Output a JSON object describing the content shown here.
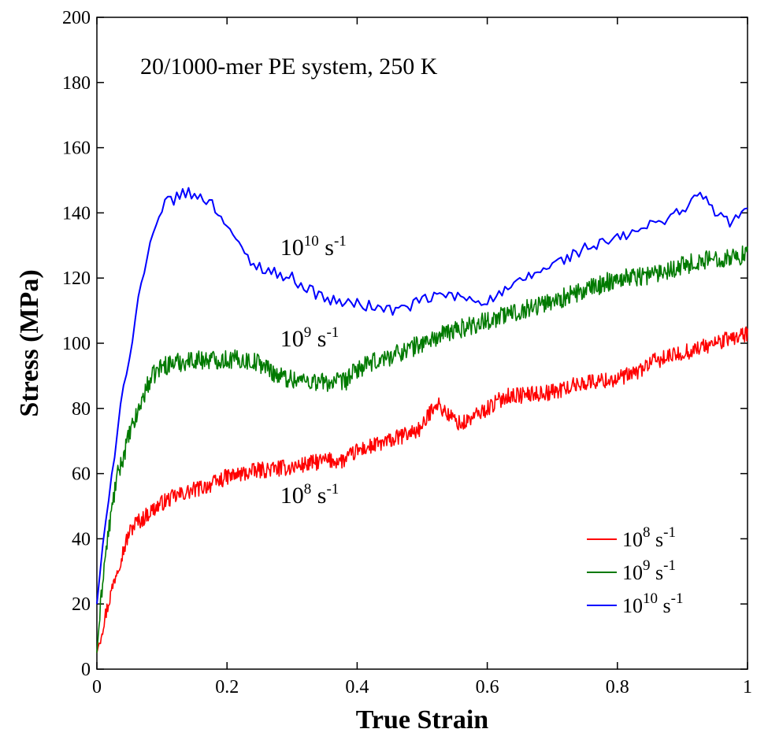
{
  "chart_data": {
    "type": "line",
    "title": "20/1000-mer PE system, 250 K",
    "xlabel": "True Strain",
    "ylabel": "Stress (MPa)",
    "xlim": [
      0,
      1
    ],
    "ylim": [
      0,
      200
    ],
    "xticks": [
      "0",
      "0.2",
      "0.4",
      "0.6",
      "0.8",
      "1"
    ],
    "yticks": [
      "0",
      "20",
      "40",
      "60",
      "80",
      "100",
      "120",
      "140",
      "160",
      "180",
      "200"
    ],
    "grid": false,
    "legend_position": "bottom-right",
    "series": [
      {
        "name": "10^8 s^-1",
        "label_base": "10",
        "label_exp": "8",
        "label_unit": "s",
        "label_unit_exp": "-1",
        "color": "#ff0000",
        "noise": 2.5,
        "x": [
          0,
          0.01,
          0.02,
          0.03,
          0.04,
          0.05,
          0.06,
          0.07,
          0.08,
          0.1,
          0.12,
          0.15,
          0.18,
          0.2,
          0.25,
          0.3,
          0.35,
          0.38,
          0.4,
          0.45,
          0.5,
          0.52,
          0.54,
          0.56,
          0.6,
          0.63,
          0.65,
          0.7,
          0.75,
          0.8,
          0.83,
          0.85,
          0.9,
          0.95,
          1.0
        ],
        "y": [
          5,
          14,
          22,
          30,
          36,
          42,
          45,
          46,
          48,
          51,
          53,
          55,
          57,
          59,
          61,
          62,
          64,
          64,
          67,
          70,
          74,
          82,
          78,
          75,
          80,
          84,
          84,
          85,
          88,
          89,
          91,
          94,
          97,
          100,
          103
        ]
      },
      {
        "name": "10^9 s^-1",
        "label_base": "10",
        "label_exp": "9",
        "label_unit": "s",
        "label_unit_exp": "-1",
        "color": "#007a00",
        "noise": 3.0,
        "x": [
          0,
          0.01,
          0.02,
          0.03,
          0.04,
          0.05,
          0.06,
          0.07,
          0.08,
          0.09,
          0.1,
          0.12,
          0.15,
          0.18,
          0.2,
          0.22,
          0.25,
          0.28,
          0.3,
          0.35,
          0.38,
          0.4,
          0.45,
          0.5,
          0.55,
          0.6,
          0.65,
          0.7,
          0.75,
          0.8,
          0.85,
          0.9,
          0.95,
          1.0
        ],
        "y": [
          5,
          30,
          45,
          58,
          65,
          72,
          77,
          83,
          88,
          91,
          93,
          94,
          95,
          95,
          95,
          95,
          94,
          90,
          89,
          88,
          88,
          92,
          96,
          100,
          104,
          107,
          110,
          113,
          116,
          120,
          121,
          124,
          126,
          127
        ]
      },
      {
        "name": "10^10 s^-1",
        "label_base": "10",
        "label_exp": "10",
        "label_unit": "s",
        "label_unit_exp": "-1",
        "color": "#0000ff",
        "noise": 1.8,
        "x": [
          0,
          0.01,
          0.02,
          0.03,
          0.04,
          0.05,
          0.06,
          0.07,
          0.08,
          0.09,
          0.1,
          0.11,
          0.12,
          0.13,
          0.14,
          0.15,
          0.16,
          0.17,
          0.18,
          0.19,
          0.2,
          0.22,
          0.24,
          0.26,
          0.28,
          0.3,
          0.33,
          0.36,
          0.4,
          0.43,
          0.46,
          0.5,
          0.53,
          0.56,
          0.6,
          0.63,
          0.66,
          0.7,
          0.75,
          0.8,
          0.85,
          0.9,
          0.93,
          0.95,
          0.97,
          1.0
        ],
        "y": [
          20,
          40,
          55,
          68,
          88,
          95,
          110,
          120,
          128,
          135,
          140,
          145,
          144,
          146,
          146,
          145,
          145,
          144,
          142,
          139,
          137,
          129,
          124,
          123,
          121,
          120,
          116,
          113,
          112,
          111,
          110,
          113,
          115,
          114,
          113,
          116,
          120,
          124,
          129,
          132,
          136,
          141,
          146,
          140,
          137,
          141
        ]
      }
    ],
    "annotations": [
      {
        "series_index": 2,
        "base": "10",
        "exp": "10",
        "unit": "s",
        "unit_exp": "-1",
        "x": 0.26,
        "y": 127
      },
      {
        "series_index": 1,
        "base": "10",
        "exp": "9",
        "unit": "s",
        "unit_exp": "-1",
        "x": 0.26,
        "y": 99
      },
      {
        "series_index": 0,
        "base": "10",
        "exp": "8",
        "unit": "s",
        "unit_exp": "-1",
        "x": 0.26,
        "y": 51
      }
    ]
  }
}
